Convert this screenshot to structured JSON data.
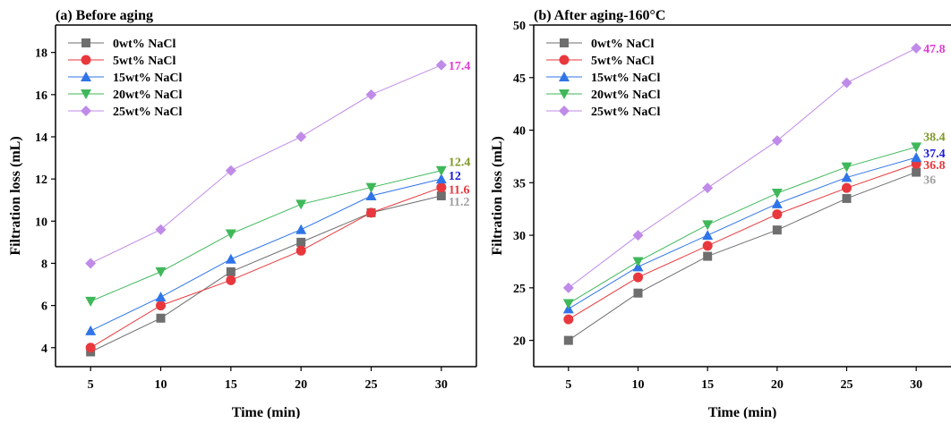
{
  "chart_data": [
    {
      "type": "line",
      "title": "(a) Before aging",
      "xlabel": "Time (min)",
      "ylabel": "Filtration loss (mL)",
      "x": [
        5,
        10,
        15,
        20,
        25,
        30
      ],
      "xlim": [
        2.5,
        32.5
      ],
      "ylim": [
        3.1,
        19.3
      ],
      "yticks": [
        4,
        6,
        8,
        10,
        12,
        14,
        16,
        18
      ],
      "grid": false,
      "legend": "top-left",
      "series": [
        {
          "name": "0wt% NaCl",
          "color": "#6e6e6e",
          "marker": "square",
          "values": [
            3.8,
            5.4,
            7.6,
            9.0,
            10.4,
            11.2
          ],
          "end_label": "11.2",
          "label_color": "#a0a0a0"
        },
        {
          "name": "5wt% NaCl",
          "color": "#e8383d",
          "marker": "circle",
          "values": [
            4.0,
            6.0,
            7.2,
            8.6,
            10.4,
            11.6
          ],
          "end_label": "11.6",
          "label_color": "#e8383d"
        },
        {
          "name": "15wt% NaCl",
          "color": "#2f75e8",
          "marker": "triangle-up",
          "values": [
            4.8,
            6.4,
            8.2,
            9.6,
            11.2,
            12.0
          ],
          "end_label": "12",
          "label_color": "#1a1adc"
        },
        {
          "name": "20wt% NaCl",
          "color": "#3fb85a",
          "marker": "triangle-down",
          "values": [
            6.2,
            7.6,
            9.4,
            10.8,
            11.6,
            12.4
          ],
          "end_label": "12.4",
          "label_color": "#7e9a2a"
        },
        {
          "name": "25wt% NaCl",
          "color": "#c08be8",
          "marker": "diamond",
          "values": [
            8.0,
            9.6,
            12.4,
            14.0,
            16.0,
            17.4
          ],
          "end_label": "17.4",
          "label_color": "#e23ad8"
        }
      ]
    },
    {
      "type": "line",
      "title": "(b) After aging-160°C",
      "xlabel": "Time (min)",
      "ylabel": "Filtration loss (mL)",
      "x": [
        5,
        10,
        15,
        20,
        25,
        30
      ],
      "xlim": [
        2.5,
        32.5
      ],
      "ylim": [
        17.5,
        50
      ],
      "yticks": [
        20,
        25,
        30,
        35,
        40,
        45,
        50
      ],
      "grid": false,
      "legend": "top-left",
      "series": [
        {
          "name": "0wt% NaCl",
          "color": "#6e6e6e",
          "marker": "square",
          "values": [
            20.0,
            24.5,
            28.0,
            30.5,
            33.5,
            36.0
          ],
          "end_label": "36",
          "label_color": "#a0a0a0"
        },
        {
          "name": "5wt% NaCl",
          "color": "#e8383d",
          "marker": "circle",
          "values": [
            22.0,
            26.0,
            29.0,
            32.0,
            34.5,
            36.8
          ],
          "end_label": "36.8",
          "label_color": "#e8383d"
        },
        {
          "name": "15wt% NaCl",
          "color": "#2f75e8",
          "marker": "triangle-up",
          "values": [
            23.0,
            27.0,
            30.0,
            33.0,
            35.5,
            37.4
          ],
          "end_label": "37.4",
          "label_color": "#1a1adc"
        },
        {
          "name": "20wt% NaCl",
          "color": "#3fb85a",
          "marker": "triangle-down",
          "values": [
            23.5,
            27.5,
            31.0,
            34.0,
            36.5,
            38.4
          ],
          "end_label": "38.4",
          "label_color": "#7e9a2a"
        },
        {
          "name": "25wt% NaCl",
          "color": "#c08be8",
          "marker": "diamond",
          "values": [
            25.0,
            30.0,
            34.5,
            39.0,
            44.5,
            47.8
          ],
          "end_label": "47.8",
          "label_color": "#e23ad8"
        }
      ]
    }
  ]
}
